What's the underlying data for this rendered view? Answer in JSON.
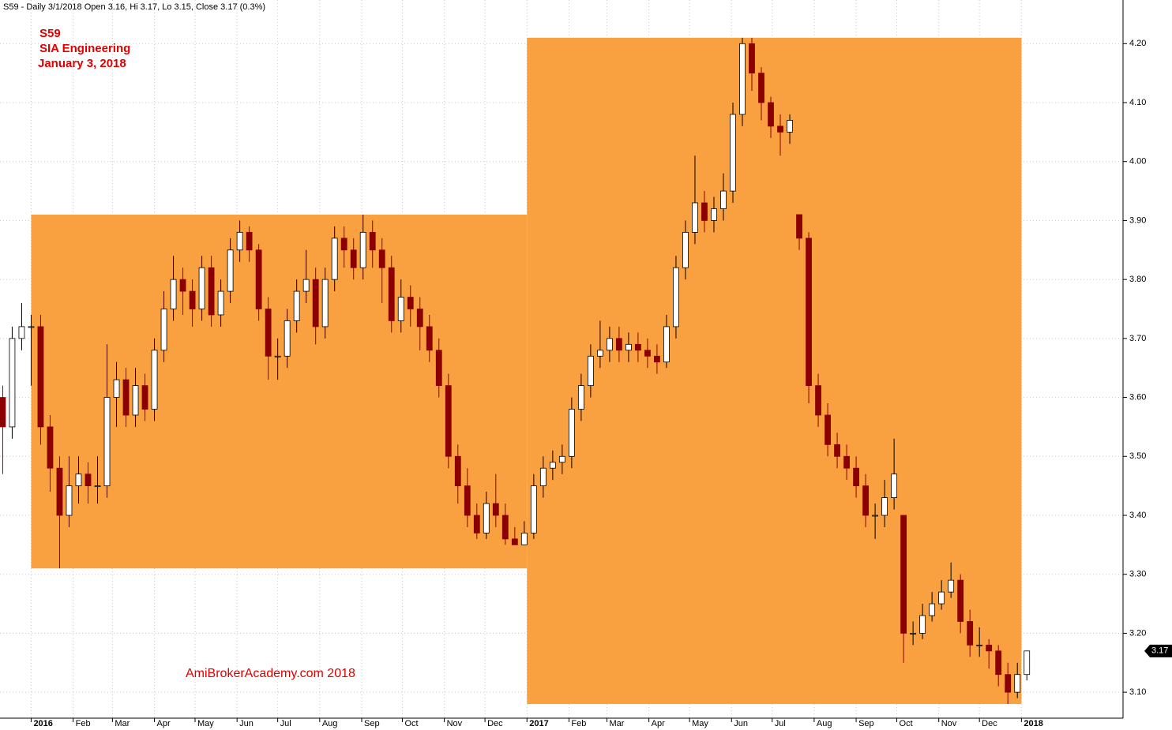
{
  "chart_data": {
    "type": "candlestick",
    "header": "S59 - Daily 3/1/2018 Open 3.16, Hi 3.17, Lo 3.15, Close 3.17 (0.3%)",
    "title": "S59",
    "subtitle": "SIA Engineering",
    "date": "January 3, 2018",
    "watermark": "AmiBrokerAcademy.com  2018",
    "x": [
      -21,
      -14,
      -7,
      0,
      7,
      14,
      21,
      28,
      35,
      42,
      49,
      56,
      63,
      70,
      77,
      84,
      91,
      98,
      105,
      112,
      119,
      126,
      133,
      140,
      147,
      154,
      161,
      168,
      175,
      182,
      189,
      196,
      203,
      210,
      217,
      224,
      231,
      238,
      245,
      252,
      259,
      266,
      273,
      280,
      287,
      294,
      301,
      308,
      315,
      322,
      329,
      336,
      343,
      350,
      357,
      364,
      371,
      378,
      385,
      392,
      399,
      406,
      413,
      420,
      427,
      434,
      441,
      448,
      455,
      462,
      469,
      476,
      483,
      490,
      497,
      504,
      511,
      518,
      525,
      532,
      539,
      546,
      553,
      560,
      567,
      574,
      581,
      588,
      595,
      602,
      609,
      616,
      623,
      630,
      637,
      644,
      651,
      658,
      665,
      672,
      679,
      686,
      693,
      700,
      707,
      714,
      721,
      728,
      735
    ],
    "open": [
      3.6,
      3.55,
      3.7,
      3.72,
      3.72,
      3.55,
      3.48,
      3.4,
      3.45,
      3.47,
      3.45,
      3.45,
      3.6,
      3.63,
      3.57,
      3.62,
      3.58,
      3.68,
      3.75,
      3.8,
      3.78,
      3.75,
      3.82,
      3.74,
      3.78,
      3.85,
      3.88,
      3.85,
      3.75,
      3.67,
      3.67,
      3.73,
      3.78,
      3.8,
      3.72,
      3.8,
      3.87,
      3.85,
      3.82,
      3.88,
      3.85,
      3.82,
      3.73,
      3.77,
      3.75,
      3.72,
      3.68,
      3.62,
      3.5,
      3.45,
      3.4,
      3.37,
      3.42,
      3.4,
      3.36,
      3.35,
      3.37,
      3.45,
      3.48,
      3.49,
      3.5,
      3.58,
      3.62,
      3.67,
      3.68,
      3.7,
      3.68,
      3.69,
      3.68,
      3.67,
      3.66,
      3.72,
      3.82,
      3.88,
      3.93,
      3.9,
      3.92,
      3.95,
      4.08,
      4.2,
      4.15,
      4.1,
      4.06,
      4.05,
      3.91,
      3.87,
      3.62,
      3.57,
      3.52,
      3.5,
      3.48,
      3.45,
      3.4,
      3.4,
      3.43,
      3.4,
      3.2,
      3.2,
      3.23,
      3.25,
      3.27,
      3.29,
      3.22,
      3.18,
      3.18,
      3.17,
      3.13,
      3.1,
      3.13
    ],
    "high": [
      3.62,
      3.72,
      3.76,
      3.74,
      3.74,
      3.57,
      3.5,
      3.5,
      3.5,
      3.49,
      3.5,
      3.69,
      3.66,
      3.65,
      3.65,
      3.64,
      3.7,
      3.78,
      3.84,
      3.82,
      3.8,
      3.84,
      3.84,
      3.8,
      3.87,
      3.9,
      3.89,
      3.86,
      3.77,
      3.7,
      3.75,
      3.8,
      3.85,
      3.82,
      3.82,
      3.89,
      3.89,
      3.87,
      3.91,
      3.9,
      3.87,
      3.84,
      3.8,
      3.79,
      3.77,
      3.74,
      3.7,
      3.64,
      3.52,
      3.48,
      3.42,
      3.44,
      3.47,
      3.42,
      3.38,
      3.39,
      3.47,
      3.5,
      3.51,
      3.52,
      3.6,
      3.64,
      3.69,
      3.73,
      3.72,
      3.72,
      3.71,
      3.71,
      3.7,
      3.69,
      3.74,
      3.84,
      3.9,
      4.01,
      3.95,
      3.94,
      3.98,
      4.1,
      4.21,
      4.21,
      4.16,
      4.11,
      4.08,
      4.08,
      3.91,
      3.88,
      3.64,
      3.59,
      3.54,
      3.52,
      3.5,
      3.47,
      3.42,
      3.46,
      3.53,
      3.4,
      3.22,
      3.25,
      3.27,
      3.29,
      3.32,
      3.3,
      3.24,
      3.21,
      3.19,
      3.18,
      3.15,
      3.15,
      3.17
    ],
    "low": [
      3.47,
      3.53,
      3.68,
      3.62,
      3.52,
      3.44,
      3.31,
      3.38,
      3.42,
      3.42,
      3.42,
      3.43,
      3.55,
      3.55,
      3.55,
      3.56,
      3.56,
      3.66,
      3.73,
      3.74,
      3.72,
      3.73,
      3.72,
      3.72,
      3.76,
      3.83,
      3.83,
      3.73,
      3.63,
      3.63,
      3.65,
      3.71,
      3.76,
      3.69,
      3.7,
      3.78,
      3.82,
      3.8,
      3.8,
      3.82,
      3.76,
      3.71,
      3.71,
      3.72,
      3.68,
      3.66,
      3.6,
      3.48,
      3.42,
      3.38,
      3.36,
      3.36,
      3.38,
      3.35,
      3.35,
      3.35,
      3.36,
      3.43,
      3.46,
      3.47,
      3.48,
      3.56,
      3.6,
      3.65,
      3.66,
      3.66,
      3.66,
      3.66,
      3.65,
      3.64,
      3.65,
      3.7,
      3.8,
      3.86,
      3.88,
      3.88,
      3.9,
      3.93,
      4.06,
      4.12,
      4.07,
      4.04,
      4.01,
      4.03,
      3.85,
      3.59,
      3.55,
      3.5,
      3.48,
      3.46,
      3.43,
      3.38,
      3.36,
      3.38,
      3.41,
      3.15,
      3.18,
      3.19,
      3.22,
      3.24,
      3.26,
      3.2,
      3.16,
      3.16,
      3.14,
      3.11,
      3.08,
      3.09,
      3.12
    ],
    "close": [
      3.55,
      3.7,
      3.72,
      3.72,
      3.55,
      3.48,
      3.4,
      3.45,
      3.47,
      3.45,
      3.45,
      3.6,
      3.63,
      3.57,
      3.62,
      3.58,
      3.68,
      3.75,
      3.8,
      3.78,
      3.75,
      3.82,
      3.74,
      3.78,
      3.85,
      3.88,
      3.85,
      3.75,
      3.67,
      3.67,
      3.73,
      3.78,
      3.8,
      3.72,
      3.8,
      3.87,
      3.85,
      3.82,
      3.88,
      3.85,
      3.82,
      3.73,
      3.77,
      3.75,
      3.72,
      3.68,
      3.62,
      3.5,
      3.45,
      3.4,
      3.37,
      3.42,
      3.4,
      3.36,
      3.35,
      3.37,
      3.45,
      3.48,
      3.49,
      3.5,
      3.58,
      3.62,
      3.67,
      3.68,
      3.7,
      3.68,
      3.69,
      3.68,
      3.67,
      3.66,
      3.72,
      3.82,
      3.88,
      3.93,
      3.9,
      3.92,
      3.95,
      4.08,
      4.2,
      4.15,
      4.1,
      4.06,
      4.05,
      4.07,
      3.87,
      3.62,
      3.57,
      3.52,
      3.5,
      3.48,
      3.45,
      3.4,
      3.4,
      3.43,
      3.47,
      3.2,
      3.2,
      3.23,
      3.25,
      3.27,
      3.29,
      3.22,
      3.18,
      3.18,
      3.17,
      3.13,
      3.1,
      3.13,
      3.17
    ],
    "up_color": "#ffffff",
    "down_color": "#8b0000",
    "boxes": [
      {
        "x": [
          0,
          366
        ],
        "y": [
          3.31,
          3.91
        ],
        "color": "#f9a040"
      },
      {
        "x": [
          366,
          731
        ],
        "y": [
          3.08,
          4.21
        ],
        "color": "#f9a040"
      }
    ],
    "last_value": 3.17,
    "xlim": [
      -23,
      806
    ],
    "xticks": [
      {
        "value": 0,
        "label": "2016"
      },
      {
        "value": 31,
        "label": "Feb"
      },
      {
        "value": 60,
        "label": "Mar"
      },
      {
        "value": 91,
        "label": "Apr"
      },
      {
        "value": 121,
        "label": "May"
      },
      {
        "value": 152,
        "label": "Jun"
      },
      {
        "value": 182,
        "label": "Jul"
      },
      {
        "value": 213,
        "label": "Aug"
      },
      {
        "value": 244,
        "label": "Sep"
      },
      {
        "value": 274,
        "label": "Oct"
      },
      {
        "value": 305,
        "label": "Nov"
      },
      {
        "value": 335,
        "label": "Dec"
      },
      {
        "value": 366,
        "label": "2017"
      },
      {
        "value": 397,
        "label": "Feb"
      },
      {
        "value": 425,
        "label": "Mar"
      },
      {
        "value": 456,
        "label": "Apr"
      },
      {
        "value": 486,
        "label": "May"
      },
      {
        "value": 517,
        "label": "Jun"
      },
      {
        "value": 547,
        "label": "Jul"
      },
      {
        "value": 578,
        "label": "Aug"
      },
      {
        "value": 609,
        "label": "Sep"
      },
      {
        "value": 639,
        "label": "Oct"
      },
      {
        "value": 670,
        "label": "Nov"
      },
      {
        "value": 700,
        "label": "Dec"
      },
      {
        "value": 731,
        "label": "2018"
      }
    ],
    "ylim": [
      3.056,
      4.274
    ],
    "yticks": [
      {
        "value": 3.1,
        "label": "3.10"
      },
      {
        "value": 3.2,
        "label": "3.20"
      },
      {
        "value": 3.3,
        "label": "3.30"
      },
      {
        "value": 3.4,
        "label": "3.40"
      },
      {
        "value": 3.5,
        "label": "3.50"
      },
      {
        "value": 3.6,
        "label": "3.60"
      },
      {
        "value": 3.7,
        "label": "3.70"
      },
      {
        "value": 3.8,
        "label": "3.80"
      },
      {
        "value": 3.9,
        "label": "3.90"
      },
      {
        "value": 4.0,
        "label": "4.00"
      },
      {
        "value": 4.1,
        "label": "4.10"
      },
      {
        "value": 4.2,
        "label": "4.20"
      }
    ],
    "grid": true
  }
}
